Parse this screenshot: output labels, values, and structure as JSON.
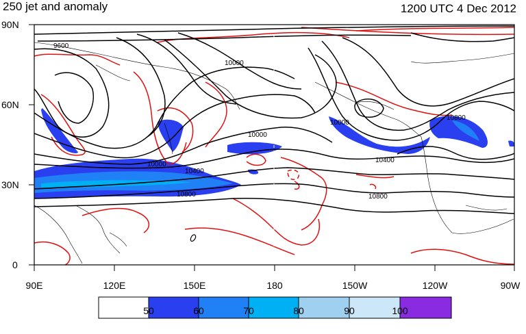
{
  "title": "250 jet and anomaly",
  "valid_time": "1200 UTC 4 Dec 2012",
  "lat_labels": [
    "90N",
    "60N",
    "30N",
    "0"
  ],
  "lon_labels": [
    "90E",
    "120E",
    "150E",
    "180",
    "150W",
    "120W",
    "90W"
  ],
  "contour_labels": [
    "9600",
    "10000",
    "10000",
    "10000",
    "10000",
    "10400",
    "10400",
    "10800",
    "10800",
    "10800"
  ],
  "colorbar": {
    "labels": [
      "50",
      "60",
      "70",
      "80",
      "90",
      "100"
    ],
    "colors": [
      "#ffffff",
      "#2a3ff0",
      "#2080f5",
      "#00b0f5",
      "#9fd0f0",
      "#cce8f8",
      "#8a2be2"
    ]
  },
  "colors": {
    "geopotential": "#000000",
    "anomaly": "#e01010",
    "coast": "#000000"
  }
}
